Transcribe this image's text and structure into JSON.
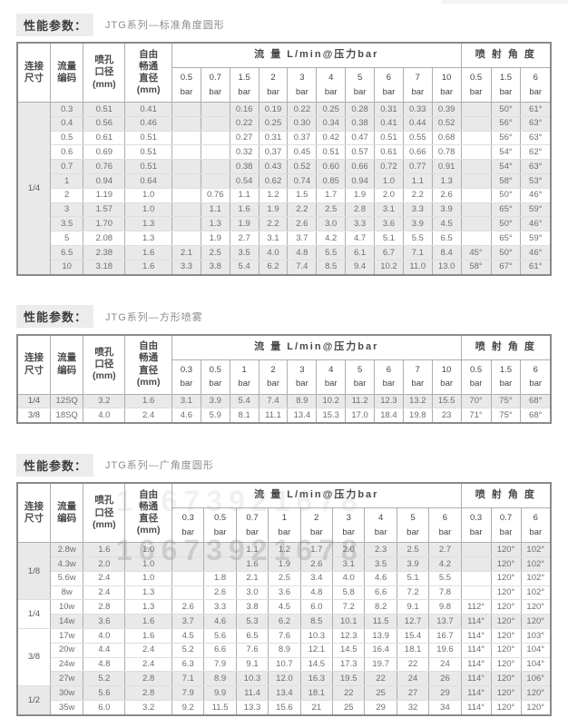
{
  "watermark": {
    "text": "16673921678"
  },
  "common": {
    "bar_label": "bar"
  },
  "sections": [
    {
      "title": "性能参数：",
      "subtitle": "JTG系列—标准角度圆形",
      "headers": {
        "connect": "连接\n尺寸",
        "code": "流量\n编码",
        "orifice": "喷孔\n口径\n(mm)",
        "free": "自由\n畅通\n直径\n(mm)",
        "flow": "流 量   L/min@压力bar",
        "angle": "喷 射 角 度"
      },
      "flow_pressures": [
        "0.5",
        "0.7",
        "1.5",
        "2",
        "3",
        "4",
        "5",
        "6",
        "7",
        "10"
      ],
      "angle_pressures": [
        "0.5",
        "1.5",
        "6"
      ],
      "groups": [
        {
          "label": "1/4",
          "span": 12
        }
      ],
      "rows": [
        {
          "code": "0.3",
          "orifice": "0.51",
          "free": "0.41",
          "flows": [
            "",
            "",
            "0.16",
            "0.19",
            "0.22",
            "0.25",
            "0.28",
            "0.31",
            "0.33",
            "0.39"
          ],
          "angles": [
            "",
            "50°",
            "61°"
          ],
          "shade": true
        },
        {
          "code": "0.4",
          "orifice": "0.56",
          "free": "0.46",
          "flows": [
            "",
            "",
            "0.22",
            "0.25",
            "0.30",
            "0.34",
            "0.38",
            "0.41",
            "0.44",
            "0.52"
          ],
          "angles": [
            "",
            "56°",
            "63°"
          ],
          "shade": true
        },
        {
          "code": "0.5",
          "orifice": "0.61",
          "free": "0.51",
          "flows": [
            "",
            "",
            "0.27",
            "0.31",
            "0.37",
            "0.42",
            "0.47",
            "0.51",
            "0.55",
            "0.68"
          ],
          "angles": [
            "",
            "56°",
            "63°"
          ],
          "shade": false
        },
        {
          "code": "0.6",
          "orifice": "0.69",
          "free": "0.51",
          "flows": [
            "",
            "",
            "0.32",
            "0.37",
            "0.45",
            "0.51",
            "0.57",
            "0.61",
            "0.66",
            "0.78"
          ],
          "angles": [
            "",
            "54°",
            "62°"
          ],
          "shade": false
        },
        {
          "code": "0.7",
          "orifice": "0.76",
          "free": "0.51",
          "flows": [
            "",
            "",
            "0.38",
            "0.43",
            "0.52",
            "0.60",
            "0.66",
            "0.72",
            "0.77",
            "0.91"
          ],
          "angles": [
            "",
            "54°",
            "63°"
          ],
          "shade": true
        },
        {
          "code": "1",
          "orifice": "0.94",
          "free": "0.64",
          "flows": [
            "",
            "",
            "0.54",
            "0.62",
            "0.74",
            "0.85",
            "0.94",
            "1.0",
            "1.1",
            "1.3"
          ],
          "angles": [
            "",
            "58°",
            "53°"
          ],
          "shade": true
        },
        {
          "code": "2",
          "orifice": "1.19",
          "free": "1.0",
          "flows": [
            "",
            "0.76",
            "1.1",
            "1.2",
            "1.5",
            "1.7",
            "1.9",
            "2.0",
            "2.2",
            "2.6"
          ],
          "angles": [
            "",
            "50°",
            "46°"
          ],
          "shade": false
        },
        {
          "code": "3",
          "orifice": "1.57",
          "free": "1.0",
          "flows": [
            "",
            "1.1",
            "1.6",
            "1.9",
            "2.2",
            "2.5",
            "2.8",
            "3.1",
            "3.3",
            "3.9"
          ],
          "angles": [
            "",
            "65°",
            "59°"
          ],
          "shade": true
        },
        {
          "code": "3.5",
          "orifice": "1.70",
          "free": "1.3",
          "flows": [
            "",
            "1.3",
            "1.9",
            "2.2",
            "2.6",
            "3.0",
            "3.3",
            "3.6",
            "3.9",
            "4.5"
          ],
          "angles": [
            "",
            "50°",
            "46°"
          ],
          "shade": true
        },
        {
          "code": "5",
          "orifice": "2.08",
          "free": "1.3",
          "flows": [
            "",
            "1.9",
            "2.7",
            "3.1",
            "3.7",
            "4.2",
            "4.7",
            "5.1",
            "5.5",
            "6.5"
          ],
          "angles": [
            "",
            "65°",
            "59°"
          ],
          "shade": false
        },
        {
          "code": "6.5",
          "orifice": "2.38",
          "free": "1.6",
          "flows": [
            "2.1",
            "2.5",
            "3.5",
            "4.0",
            "4.8",
            "5.5",
            "6.1",
            "6.7",
            "7.1",
            "8.4"
          ],
          "angles": [
            "45°",
            "50°",
            "46°"
          ],
          "shade": true
        },
        {
          "code": "10",
          "orifice": "3.18",
          "free": "1.6",
          "flows": [
            "3.3",
            "3.8",
            "5.4",
            "6.2",
            "7.4",
            "8.5",
            "9.4",
            "10.2",
            "11.0",
            "13.0"
          ],
          "angles": [
            "58°",
            "67°",
            "61°"
          ],
          "shade": true
        }
      ]
    },
    {
      "title": "性能参数：",
      "subtitle": "JTG系列—方形喷雾",
      "headers": {
        "connect": "连接\n尺寸",
        "code": "流量\n编码",
        "orifice": "喷孔\n口径\n(mm)",
        "free": "自由\n畅通\n直径\n(mm)",
        "flow": "流 量   L/min@压力bar",
        "angle": "喷 射 角 度"
      },
      "flow_pressures": [
        "0.3",
        "0.5",
        "1",
        "2",
        "3",
        "4",
        "5",
        "6",
        "7",
        "10"
      ],
      "angle_pressures": [
        "0.5",
        "1.5",
        "6"
      ],
      "groups": [
        {
          "label": "1/4",
          "span": 1
        },
        {
          "label": "3/8",
          "span": 1
        }
      ],
      "rows": [
        {
          "code": "12SQ",
          "orifice": "3.2",
          "free": "1.6",
          "flows": [
            "3.1",
            "3.9",
            "5.4",
            "7.4",
            "8.9",
            "10.2",
            "11.2",
            "12.3",
            "13.2",
            "15.5"
          ],
          "angles": [
            "70°",
            "75°",
            "68°"
          ],
          "shade": true
        },
        {
          "code": "18SQ",
          "orifice": "4.0",
          "free": "2.4",
          "flows": [
            "4.6",
            "5.9",
            "8.1",
            "11.1",
            "13.4",
            "15.3",
            "17.0",
            "18.4",
            "19.8",
            "23"
          ],
          "angles": [
            "71°",
            "75°",
            "68°"
          ],
          "shade": false
        }
      ]
    },
    {
      "title": "性能参数：",
      "subtitle": "JTG系列—广角度圆形",
      "headers": {
        "connect": "连接\n尺寸",
        "code": "流量\n编码",
        "orifice": "喷孔\n口径\n(mm)",
        "free": "自由\n畅通\n直径\n(mm)",
        "flow": "流 量   L/min@压力bar",
        "angle": "喷 射 角 度"
      },
      "flow_pressures": [
        "0.3",
        "0.5",
        "0.7",
        "1",
        "2",
        "3",
        "4",
        "5",
        "6"
      ],
      "angle_pressures": [
        "0.3",
        "0.7",
        "6"
      ],
      "groups": [
        {
          "label": "1/8",
          "span": 4
        },
        {
          "label": "1/4",
          "span": 2
        },
        {
          "label": "3/8",
          "span": 4
        },
        {
          "label": "1/2",
          "span": 2
        }
      ],
      "rows": [
        {
          "code": "2.8w",
          "orifice": "1.6",
          "free": "1.0",
          "flows": [
            "",
            "",
            "1.1",
            "1.2",
            "1.7",
            "2.0",
            "2.3",
            "2.5",
            "2.7"
          ],
          "angles": [
            "",
            "120°",
            "102°"
          ],
          "shade": true
        },
        {
          "code": "4.3w",
          "orifice": "2.0",
          "free": "1.0",
          "flows": [
            "",
            "",
            "1.6",
            "1.9",
            "2.6",
            "3.1",
            "3.5",
            "3.9",
            "4.2"
          ],
          "angles": [
            "",
            "120°",
            "102°"
          ],
          "shade": true
        },
        {
          "code": "5.6w",
          "orifice": "2.4",
          "free": "1.0",
          "flows": [
            "",
            "1.8",
            "2.1",
            "2.5",
            "3.4",
            "4.0",
            "4.6",
            "5.1",
            "5.5"
          ],
          "angles": [
            "",
            "120°",
            "102°"
          ],
          "shade": false
        },
        {
          "code": "8w",
          "orifice": "2.4",
          "free": "1.3",
          "flows": [
            "",
            "2.6",
            "3.0",
            "3.6",
            "4.8",
            "5.8",
            "6.6",
            "7.2",
            "7.8"
          ],
          "angles": [
            "",
            "120°",
            "102°"
          ],
          "shade": false
        },
        {
          "code": "10w",
          "orifice": "2.8",
          "free": "1.3",
          "flows": [
            "2.6",
            "3.3",
            "3.8",
            "4.5",
            "6.0",
            "7.2",
            "8.2",
            "9.1",
            "9.8"
          ],
          "angles": [
            "112°",
            "120°",
            "120°"
          ],
          "shade": false
        },
        {
          "code": "14w",
          "orifice": "3.6",
          "free": "1.6",
          "flows": [
            "3.7",
            "4.6",
            "5.3",
            "6.2",
            "8.5",
            "10.1",
            "11.5",
            "12.7",
            "13.7"
          ],
          "angles": [
            "114°",
            "120°",
            "120°"
          ],
          "shade": true
        },
        {
          "code": "17w",
          "orifice": "4.0",
          "free": "1.6",
          "flows": [
            "4.5",
            "5.6",
            "6.5",
            "7.6",
            "10.3",
            "12.3",
            "13.9",
            "15.4",
            "16.7"
          ],
          "angles": [
            "114°",
            "120°",
            "103°"
          ],
          "shade": false
        },
        {
          "code": "20w",
          "orifice": "4.4",
          "free": "2.4",
          "flows": [
            "5.2",
            "6.6",
            "7.6",
            "8.9",
            "12.1",
            "14.5",
            "16.4",
            "18.1",
            "19.6"
          ],
          "angles": [
            "114°",
            "120°",
            "104°"
          ],
          "shade": false
        },
        {
          "code": "24w",
          "orifice": "4.8",
          "free": "2.4",
          "flows": [
            "6.3",
            "7.9",
            "9.1",
            "10.7",
            "14.5",
            "17.3",
            "19.7",
            "22",
            "24"
          ],
          "angles": [
            "114°",
            "120°",
            "104°"
          ],
          "shade": false
        },
        {
          "code": "27w",
          "orifice": "5.2",
          "free": "2.8",
          "flows": [
            "7.1",
            "8.9",
            "10.3",
            "12.0",
            "16.3",
            "19.5",
            "22",
            "24",
            "26"
          ],
          "angles": [
            "114°",
            "120°",
            "106°"
          ],
          "shade": true
        },
        {
          "code": "30w",
          "orifice": "5.6",
          "free": "2.8",
          "flows": [
            "7.9",
            "9.9",
            "11.4",
            "13.4",
            "18.1",
            "22",
            "25",
            "27",
            "29"
          ],
          "angles": [
            "114°",
            "120°",
            "120°"
          ],
          "shade": true
        },
        {
          "code": "35w",
          "orifice": "6.0",
          "free": "3.2",
          "flows": [
            "9.2",
            "11.5",
            "13.3",
            "15.6",
            "21",
            "25",
            "29",
            "32",
            "34"
          ],
          "angles": [
            "114°",
            "120°",
            "120°"
          ],
          "shade": false
        }
      ]
    }
  ],
  "colors": {
    "shade_row": "#e9e9e9",
    "chip_bg": "#ececec",
    "border_outer": "#8a8a8a",
    "border_inner": "#aeaeae",
    "text_header": "#4a4a4a",
    "text_cell": "#6e6e6e"
  }
}
